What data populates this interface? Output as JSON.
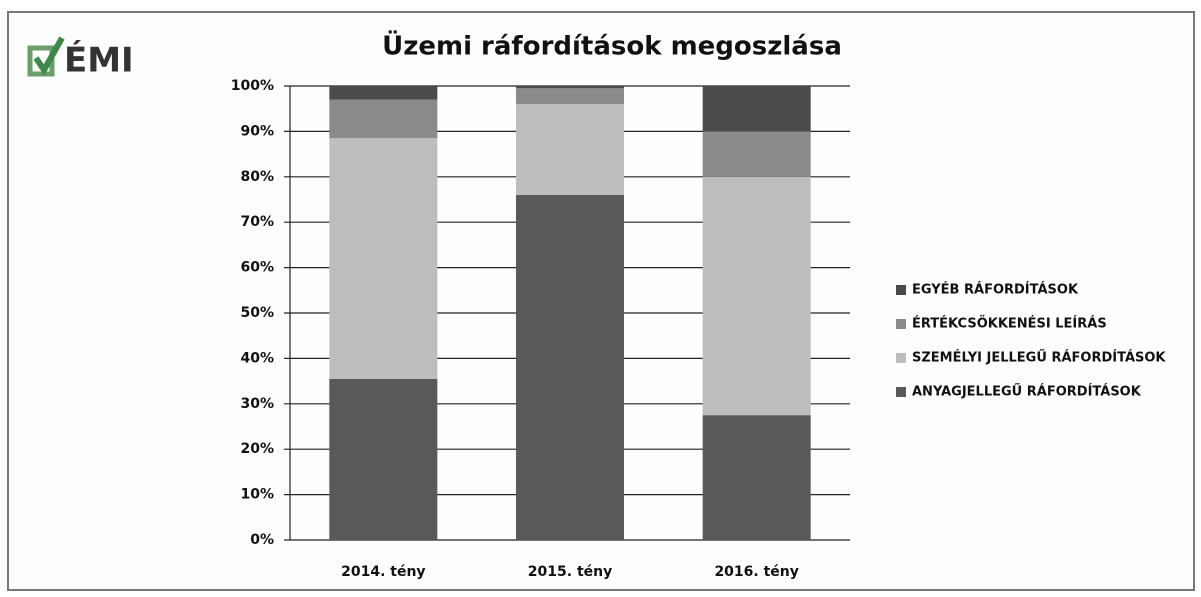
{
  "logo": "ÉMI",
  "chart_data": {
    "type": "stacked_bar",
    "title": "Üzemi ráfordítások megoszlása",
    "categories": [
      "2014. tény",
      "2015. tény",
      "2016. tény"
    ],
    "series": [
      {
        "name": "ANYAGJELLEGŰ RÁFORDÍTÁSOK",
        "color": "#595959",
        "values": [
          35.5,
          76,
          27.5
        ]
      },
      {
        "name": "SZEMÉLYI JELLEGŰ RÁFORDÍTÁSOK",
        "color": "#bdbdbd",
        "values": [
          53,
          20,
          52.5
        ]
      },
      {
        "name": "ÉRTÉKCSÖKKENÉSI LEÍRÁS",
        "color": "#8a8a8a",
        "values": [
          8.5,
          3.5,
          10
        ]
      },
      {
        "name": "EGYÉB RÁFORDÍTÁSOK",
        "color": "#4a4a4a",
        "values": [
          3,
          0.5,
          10
        ]
      }
    ],
    "ylim": [
      0,
      100
    ],
    "yticks": [
      {
        "value": 0,
        "label": "0%"
      },
      {
        "value": 10,
        "label": "10%"
      },
      {
        "value": 20,
        "label": "20%"
      },
      {
        "value": 30,
        "label": "30%"
      },
      {
        "value": 40,
        "label": "40%"
      },
      {
        "value": 50,
        "label": "50%"
      },
      {
        "value": 60,
        "label": "60%"
      },
      {
        "value": 70,
        "label": "70%"
      },
      {
        "value": 80,
        "label": "80%"
      },
      {
        "value": 90,
        "label": "90%"
      },
      {
        "value": 100,
        "label": "100%"
      }
    ],
    "grid": true,
    "legend": "right"
  }
}
